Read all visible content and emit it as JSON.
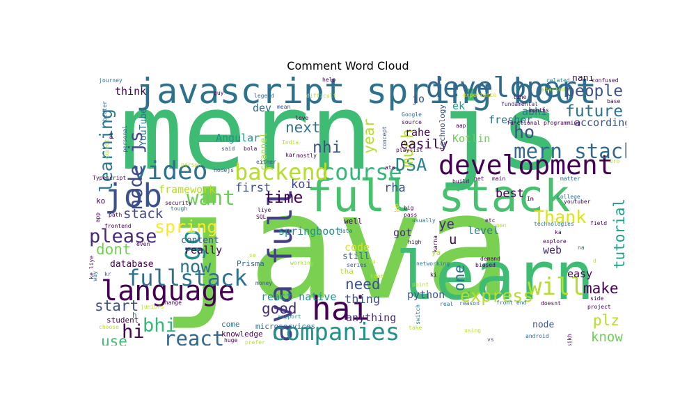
{
  "chart_data": {
    "type": "wordcloud",
    "title": "Comment Word Cloud",
    "words": [
      {
        "text": "java",
        "weight": 1.0,
        "color": "#7ad151"
      },
      {
        "text": "mern js",
        "weight": 0.72,
        "color": "#3fbc73"
      },
      {
        "text": "sir",
        "weight": 0.7,
        "color": "#2fb47c"
      },
      {
        "text": "learn",
        "weight": 0.45,
        "color": "#3fbc73"
      },
      {
        "text": "full stack",
        "weight": 0.3,
        "color": "#48c16e"
      },
      {
        "text": "javascript spring boot",
        "weight": 0.24,
        "color": "#2c728e"
      },
      {
        "text": "java full",
        "weight": 0.22,
        "color": "#433e85"
      },
      {
        "text": "job",
        "weight": 0.22,
        "color": "#3b528b"
      },
      {
        "text": "hai",
        "weight": 0.22,
        "color": "#440154"
      },
      {
        "text": "developer",
        "weight": 0.19,
        "color": "#31688e"
      },
      {
        "text": "language",
        "weight": 0.19,
        "color": "#440154"
      },
      {
        "text": "development",
        "weight": 0.18,
        "color": "#440154"
      },
      {
        "text": "go",
        "weight": 0.18,
        "color": "#21908d"
      },
      {
        "text": "video",
        "weight": 0.17,
        "color": "#2c728e"
      },
      {
        "text": "companies",
        "weight": 0.16,
        "color": "#21918c"
      },
      {
        "text": "will",
        "weight": 0.16,
        "color": "#b5de2b"
      },
      {
        "text": "course",
        "weight": 0.15,
        "color": "#35b779"
      },
      {
        "text": "backend",
        "weight": 0.15,
        "color": "#b5de2b"
      },
      {
        "text": "fullstack",
        "weight": 0.15,
        "color": "#2c728e"
      },
      {
        "text": "react",
        "weight": 0.14,
        "color": "#31688e"
      },
      {
        "text": "want",
        "weight": 0.14,
        "color": "#6ece58"
      },
      {
        "text": "mern stack",
        "weight": 0.14,
        "color": "#31688e"
      },
      {
        "text": "bhi",
        "weight": 0.13,
        "color": "#35b779"
      },
      {
        "text": "hi",
        "weight": 0.13,
        "color": "#440154"
      },
      {
        "text": "please",
        "weight": 0.13,
        "color": "#482878"
      },
      {
        "text": "node js",
        "weight": 0.13,
        "color": "#3e4a89"
      },
      {
        "text": "DSA",
        "weight": 0.12,
        "color": "#26828e"
      },
      {
        "text": "learning",
        "weight": 0.12,
        "color": "#2a788e"
      },
      {
        "text": "now",
        "weight": 0.12,
        "color": "#2c728e"
      },
      {
        "text": "spring",
        "weight": 0.12,
        "color": "#fde725"
      },
      {
        "text": "express",
        "weight": 0.12,
        "color": "#b5de2b"
      },
      {
        "text": "Thank",
        "weight": 0.12,
        "color": "#dde318"
      },
      {
        "text": "ho",
        "weight": 0.12,
        "color": "#3b528b"
      },
      {
        "text": "people",
        "weight": 0.11,
        "color": "#3b528b"
      },
      {
        "text": "future",
        "weight": 0.11,
        "color": "#2c728e"
      },
      {
        "text": "much",
        "weight": 0.11,
        "color": "#b5de2b"
      },
      {
        "text": "nhi",
        "weight": 0.11,
        "color": "#3b528b"
      },
      {
        "text": "time",
        "weight": 0.11,
        "color": "#440154"
      },
      {
        "text": "next",
        "weight": 0.1,
        "color": "#2c728e"
      },
      {
        "text": "year",
        "weight": 0.1,
        "color": "#b5de2b"
      },
      {
        "text": "dont",
        "weight": 0.1,
        "color": "#73d055"
      },
      {
        "text": "one",
        "weight": 0.1,
        "color": "#2c728e"
      },
      {
        "text": "tutorial",
        "weight": 0.1,
        "color": "#1f9e89"
      },
      {
        "text": "start",
        "weight": 0.1,
        "color": "#3b528b"
      },
      {
        "text": "make",
        "weight": 0.1,
        "color": "#440154"
      },
      {
        "text": "use",
        "weight": 0.1,
        "color": "#3fbc73"
      },
      {
        "text": "need",
        "weight": 0.1,
        "color": "#3b528b"
      },
      {
        "text": "good",
        "weight": 0.1,
        "color": "#482878"
      },
      {
        "text": "plz",
        "weight": 0.1,
        "color": "#b5de2b"
      },
      {
        "text": "know",
        "weight": 0.09,
        "color": "#6ece58"
      },
      {
        "text": "stack",
        "weight": 0.09,
        "color": "#414487"
      },
      {
        "text": "easily",
        "weight": 0.09,
        "color": "#440154"
      },
      {
        "text": "ye",
        "weight": 0.09,
        "color": "#482878"
      },
      {
        "text": "u",
        "weight": 0.09,
        "color": "#440154"
      },
      {
        "text": "koi",
        "weight": 0.08,
        "color": "#3e4a89"
      },
      {
        "text": "first",
        "weight": 0.08,
        "color": "#3b528b"
      },
      {
        "text": "rha",
        "weight": 0.08,
        "color": "#3b528b"
      },
      {
        "text": "best",
        "weight": 0.08,
        "color": "#440154"
      },
      {
        "text": "thing",
        "weight": 0.08,
        "color": "#3b528b"
      },
      {
        "text": "anything",
        "weight": 0.07,
        "color": "#482878"
      },
      {
        "text": "think",
        "weight": 0.07,
        "color": "#440154"
      },
      {
        "text": "dev",
        "weight": 0.07,
        "color": "#31688e"
      },
      {
        "text": "jo",
        "weight": 0.07,
        "color": "#3b528b"
      },
      {
        "text": "ek",
        "weight": 0.07,
        "color": "#1f9e89"
      },
      {
        "text": "abhi",
        "weight": 0.07,
        "color": "#2a788e"
      },
      {
        "text": "fresher",
        "weight": 0.07,
        "color": "#2c728e"
      },
      {
        "text": "Kotlin",
        "weight": 0.07,
        "color": "#6ece58"
      },
      {
        "text": "rahe",
        "weight": 0.07,
        "color": "#440154"
      },
      {
        "text": "according",
        "weight": 0.07,
        "color": "#3b528b"
      },
      {
        "text": "web",
        "weight": 0.07,
        "color": "#482878"
      },
      {
        "text": "easy",
        "weight": 0.07,
        "color": "#440154"
      },
      {
        "text": "Angular",
        "weight": 0.07,
        "color": "#21918c"
      },
      {
        "text": "framework",
        "weight": 0.07,
        "color": "#b5de2b"
      },
      {
        "text": "code",
        "weight": 0.07,
        "color": "#dde318"
      },
      {
        "text": "springboot",
        "weight": 0.07,
        "color": "#21918c"
      },
      {
        "text": "react native",
        "weight": 0.07,
        "color": "#21918c"
      },
      {
        "text": "python",
        "weight": 0.07,
        "color": "#3b528b"
      },
      {
        "text": "got",
        "weight": 0.07,
        "color": "#482878"
      },
      {
        "text": "level",
        "weight": 0.07,
        "color": "#2a788e"
      },
      {
        "text": "really",
        "weight": 0.07,
        "color": "#440154"
      },
      {
        "text": "content",
        "weight": 0.06,
        "color": "#3b528b"
      },
      {
        "text": "still",
        "weight": 0.06,
        "color": "#31688e"
      },
      {
        "text": "node",
        "weight": 0.06,
        "color": "#3b528b"
      },
      {
        "text": "database",
        "weight": 0.06,
        "color": "#440154"
      },
      {
        "text": "nahi",
        "weight": 0.06,
        "color": "#440154"
      },
      {
        "text": "channel",
        "weight": 0.06,
        "color": "#a0da39"
      },
      {
        "text": "YouTube",
        "weight": 0.06,
        "color": "#2c728e"
      },
      {
        "text": "student",
        "weight": 0.05,
        "color": "#440154"
      },
      {
        "text": "come",
        "weight": 0.05,
        "color": "#2c728e"
      },
      {
        "text": "knowledge",
        "weight": 0.05,
        "color": "#440154"
      },
      {
        "text": "Prisma",
        "weight": 0.05,
        "color": "#31688e"
      },
      {
        "text": "microservices",
        "weight": 0.05,
        "color": "#31688e"
      },
      {
        "text": "technology",
        "weight": 0.05,
        "color": "#3b528b"
      },
      {
        "text": "well",
        "weight": 0.05,
        "color": "#440154"
      },
      {
        "text": "tha",
        "weight": 0.05,
        "color": "#b5de2b"
      },
      {
        "text": "ya",
        "weight": 0.05,
        "color": "#b5de2b"
      },
      {
        "text": "ke",
        "weight": 0.05,
        "color": "#fde725"
      },
      {
        "text": "ko",
        "weight": 0.05,
        "color": "#440154"
      },
      {
        "text": "h",
        "weight": 0.05,
        "color": "#2c728e"
      },
      {
        "text": "functional programming",
        "weight": 0.03,
        "color": "#440154"
      },
      {
        "text": "technologies",
        "weight": 0.03,
        "color": "#2c728e"
      },
      {
        "text": "fundamental",
        "weight": 0.03,
        "color": "#482878"
      },
      {
        "text": "front end",
        "weight": 0.03,
        "color": "#2c728e"
      },
      {
        "text": "playlist",
        "weight": 0.03,
        "color": "#440154"
      },
      {
        "text": "Typescript",
        "weight": 0.03,
        "color": "#440154"
      },
      {
        "text": "frontend",
        "weight": 0.03,
        "color": "#440154"
      },
      {
        "text": "security",
        "weight": 0.03,
        "color": "#440154"
      },
      {
        "text": "experience",
        "weight": 0.03,
        "color": "#dde318"
      },
      {
        "text": "difficult",
        "weight": 0.03,
        "color": "#b5de2b"
      },
      {
        "text": "confused",
        "weight": 0.03,
        "color": "#440154"
      },
      {
        "text": "journey",
        "weight": 0.03,
        "color": "#2c728e"
      },
      {
        "text": "legend",
        "weight": 0.03,
        "color": "#31688e"
      },
      {
        "text": "source",
        "weight": 0.03,
        "color": "#440154"
      },
      {
        "text": "Google",
        "weight": 0.03,
        "color": "#31688e"
      },
      {
        "text": "months",
        "weight": 0.03,
        "color": "#440154"
      },
      {
        "text": "youtuber",
        "weight": 0.03,
        "color": "#440154"
      },
      {
        "text": "college",
        "weight": 0.03,
        "color": "#2c728e"
      },
      {
        "text": "explore",
        "weight": 0.03,
        "color": "#440154"
      },
      {
        "text": "demand",
        "weight": 0.03,
        "color": "#440154"
      },
      {
        "text": "biased",
        "weight": 0.03,
        "color": "#440154"
      },
      {
        "text": "networking",
        "weight": 0.03,
        "color": "#2c728e"
      },
      {
        "text": "working",
        "weight": 0.03,
        "color": "#a0da39"
      },
      {
        "text": "android",
        "weight": 0.03,
        "color": "#31688e"
      },
      {
        "text": "project",
        "weight": 0.03,
        "color": "#440154"
      },
      {
        "text": "reason",
        "weight": 0.03,
        "color": "#2c728e"
      },
      {
        "text": "support",
        "weight": 0.03,
        "color": "#21918c"
      },
      {
        "text": "change",
        "weight": 0.03,
        "color": "#440154"
      },
      {
        "text": "juniors",
        "weight": 0.03,
        "color": "#b5de2b"
      },
      {
        "text": "choose",
        "weight": 0.03,
        "color": "#b5de2b"
      },
      {
        "text": "prefer",
        "weight": 0.03,
        "color": "#b5de2b"
      },
      {
        "text": "money",
        "weight": 0.03,
        "color": "#3b528b"
      },
      {
        "text": "doesnt",
        "weight": 0.03,
        "color": "#440154"
      },
      {
        "text": "matter",
        "weight": 0.03,
        "color": "#31688e"
      },
      {
        "text": "related",
        "weight": 0.03,
        "color": "#21918c"
      },
      {
        "text": "started",
        "weight": 0.03,
        "color": "#b5de2b"
      },
      {
        "text": "mostly",
        "weight": 0.03,
        "color": "#440154"
      },
      {
        "text": "concept",
        "weight": 0.03,
        "color": "#3b528b"
      },
      {
        "text": "personal",
        "weight": 0.03,
        "color": "#3b528b"
      },
      {
        "text": "series",
        "weight": 0.03,
        "color": "#3b528b"
      },
      {
        "text": "either",
        "weight": 0.03,
        "color": "#3b528b"
      },
      {
        "text": "person",
        "weight": 0.03,
        "color": "#b5de2b"
      },
      {
        "text": "nodejs",
        "weight": 0.03,
        "color": "#3b528b"
      },
      {
        "text": "usually",
        "weight": 0.03,
        "color": "#2c728e"
      },
      {
        "text": "field",
        "weight": 0.03,
        "color": "#440154"
      },
      {
        "text": "expect",
        "weight": 0.03,
        "color": "#b5de2b"
      },
      {
        "text": "better",
        "weight": 0.03,
        "color": "#31688e"
      },
      {
        "text": "side",
        "weight": 0.03,
        "color": "#440154"
      },
      {
        "text": "build",
        "weight": 0.03,
        "color": "#440154"
      },
      {
        "text": "main",
        "weight": 0.03,
        "color": "#440154"
      },
      {
        "text": "help",
        "weight": 0.03,
        "color": "#440154"
      },
      {
        "text": "pass",
        "weight": 0.03,
        "color": "#440154"
      },
      {
        "text": "base",
        "weight": 0.03,
        "color": "#440154"
      },
      {
        "text": "line",
        "weight": 0.03,
        "color": "#440154"
      },
      {
        "text": "love",
        "weight": 0.03,
        "color": "#440154"
      },
      {
        "text": "said",
        "weight": 0.03,
        "color": "#3b528b"
      },
      {
        "text": "path",
        "weight": 0.03,
        "color": "#440154"
      },
      {
        "text": "kaam",
        "weight": 0.03,
        "color": "#b5de2b"
      },
      {
        "text": "high",
        "weight": 0.03,
        "color": "#440154"
      },
      {
        "text": "real",
        "weight": 0.03,
        "color": "#2c728e"
      },
      {
        "text": "tough",
        "weight": 0.03,
        "color": "#2c728e"
      },
      {
        "text": "even",
        "weight": 0.03,
        "color": "#440154"
      },
      {
        "text": "data",
        "weight": 0.03,
        "color": "#2c728e"
      },
      {
        "text": "take",
        "weight": 0.03,
        "color": "#b5de2b"
      },
      {
        "text": "using",
        "weight": 0.03,
        "color": "#b5de2b"
      },
      {
        "text": "huge",
        "weight": 0.03,
        "color": "#440154"
      },
      {
        "text": "point",
        "weight": 0.03,
        "color": "#b5de2b"
      },
      {
        "text": "open",
        "weight": 0.03,
        "color": "#b5de2b"
      },
      {
        "text": "guy",
        "weight": 0.03,
        "color": "#440154"
      },
      {
        "text": "app",
        "weight": 0.03,
        "color": "#440154"
      },
      {
        "text": "etc",
        "weight": 0.03,
        "color": "#440154"
      },
      {
        "text": "net",
        "weight": 0.03,
        "color": "#440154"
      },
      {
        "text": "SQL",
        "weight": 0.03,
        "color": "#440154"
      },
      {
        "text": "big",
        "weight": 0.03,
        "color": "#440154"
      },
      {
        "text": "kar",
        "weight": 0.03,
        "color": "#440154"
      },
      {
        "text": "bro",
        "weight": 0.03,
        "color": "#b5de2b"
      },
      {
        "text": "aap",
        "weight": 0.03,
        "color": "#440154"
      },
      {
        "text": "bola",
        "weight": 0.03,
        "color": "#440154"
      },
      {
        "text": "liye",
        "weight": 0.03,
        "color": "#440154"
      },
      {
        "text": "mean",
        "weight": 0.03,
        "color": "#3b528b"
      },
      {
        "text": "India",
        "weight": 0.03,
        "color": "#b5de2b"
      },
      {
        "text": "switch",
        "weight": 0.03,
        "color": "#2c728e"
      },
      {
        "text": "karna",
        "weight": 0.03,
        "color": "#440154"
      },
      {
        "text": "ke liye",
        "weight": 0.03,
        "color": "#440154"
      },
      {
        "text": "sikh",
        "weight": 0.03,
        "color": "#440154"
      },
      {
        "text": "ata",
        "weight": 0.03,
        "color": "#440154"
      },
      {
        "text": "ka",
        "weight": 0.03,
        "color": "#440154"
      },
      {
        "text": "na",
        "weight": 0.03,
        "color": "#2c728e"
      },
      {
        "text": "Im",
        "weight": 0.03,
        "color": "#440154"
      },
      {
        "text": "pe",
        "weight": 0.03,
        "color": "#440154"
      },
      {
        "text": "kr",
        "weight": 0.03,
        "color": "#3b528b"
      },
      {
        "text": "vs",
        "weight": 0.03,
        "color": "#3b528b"
      },
      {
        "text": "hu",
        "weight": 0.03,
        "color": "#b5de2b"
      },
      {
        "text": "se",
        "weight": 0.03,
        "color": "#b5de2b"
      },
      {
        "text": "ki",
        "weight": 0.03,
        "color": "#440154"
      },
      {
        "text": "way",
        "weight": 0.03,
        "color": "#31688e"
      },
      {
        "text": "d",
        "weight": 0.03,
        "color": "#b5de2b"
      }
    ]
  }
}
